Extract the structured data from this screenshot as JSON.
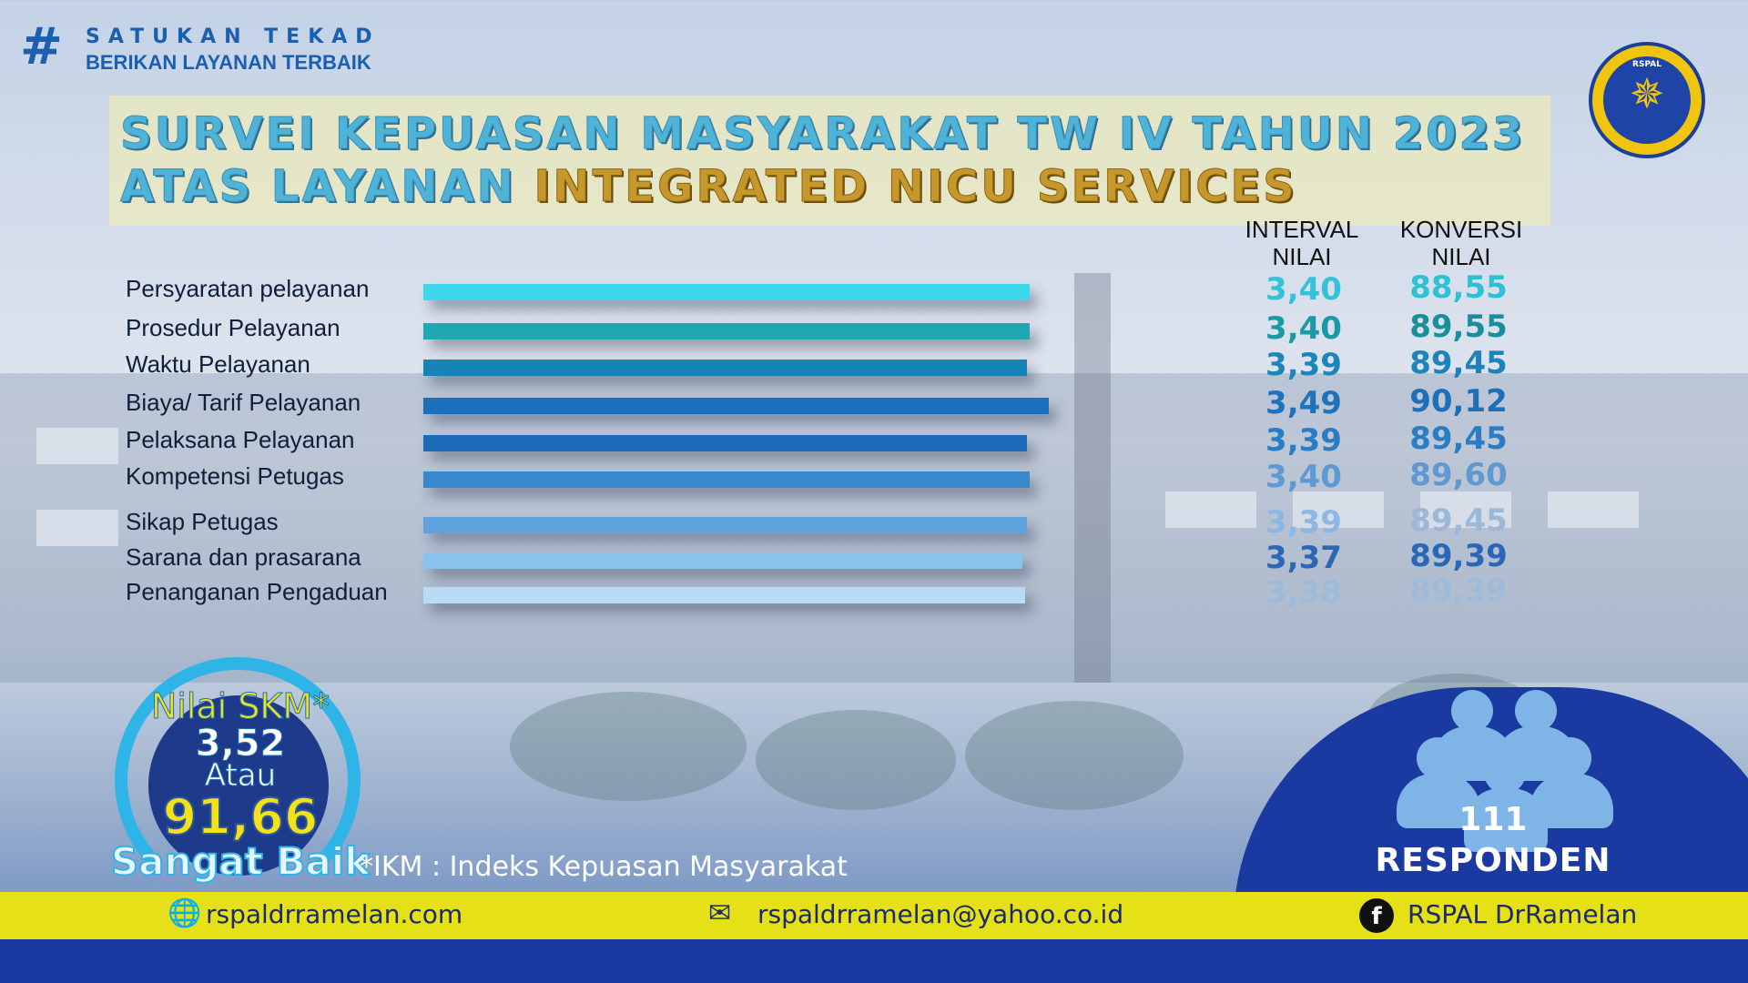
{
  "tagline": {
    "hash": "#",
    "line1": "SATUKAN TEKAD",
    "line2": "BERIKAN LAYANAN TERBAIK"
  },
  "title": {
    "line1": "SURVEI KEPUASAN MASYARAKAT TW IV TAHUN 2023",
    "line2_prefix": "ATAS LAYANAN ",
    "line2_highlight": "INTEGRATED NICU SERVICES"
  },
  "logo": {
    "text": "RSPAL"
  },
  "chart_data": {
    "type": "bar",
    "orientation": "horizontal",
    "column_headers": {
      "interval": [
        "INTERVAL",
        "NILAI"
      ],
      "konversi": [
        "KONVERSI",
        "NILAI"
      ]
    },
    "categories": [
      "Persyaratan pelayanan",
      "Prosedur Pelayanan",
      "Waktu Pelayanan",
      "Biaya/ Tarif Pelayanan",
      "Pelaksana Pelayanan",
      "Kompetensi Petugas",
      "Sikap Petugas",
      "Sarana dan prasarana",
      "Penanganan Pengaduan"
    ],
    "interval_nilai": [
      "3,40",
      "3,40",
      "3,39",
      "3,49",
      "3,39",
      "3,40",
      "3,39",
      "3,37",
      "3,38"
    ],
    "konversi_nilai": [
      "88,55",
      "89,55",
      "89,45",
      "90,12",
      "89,45",
      "89,60",
      "89,45",
      "89,39",
      "89,39"
    ],
    "values": [
      3.4,
      3.4,
      3.39,
      3.49,
      3.39,
      3.4,
      3.39,
      3.37,
      3.38
    ],
    "bar_colors": [
      "#3dd6ea",
      "#1fa8b2",
      "#1784b6",
      "#1a70bc",
      "#1d6ab8",
      "#3a88cc",
      "#5ea3dd",
      "#8ac2ee",
      "#b9dbf6"
    ],
    "value_colors": [
      "#33c3d8",
      "#1a9aa6",
      "#1c86b8",
      "#1f73bd",
      "#2a7cc4",
      "#5c9ad6",
      "#8bb7e2",
      "#2a68b6",
      "#9fbbdb"
    ],
    "konversi_colors": [
      "#2fc0d6",
      "#178f9c",
      "#1e83bb",
      "#1e6fb8",
      "#2a7cc4",
      "#6098d2",
      "#9cb8d8",
      "#2968b6",
      "#9fbbdb"
    ]
  },
  "skm": {
    "title": "Nilai SKM*",
    "score": "3,52",
    "or": "Atau",
    "index": "91,66",
    "category": "Sangat Baik"
  },
  "footnote": "*IKM : Indeks Kepuasan Masyarakat",
  "respondents": {
    "count": "111",
    "label": "RESPONDEN"
  },
  "footer": {
    "website": "rspaldrramelan.com",
    "email": "rspaldrramelan@yahoo.co.id",
    "facebook": "RSPAL DrRamelan",
    "fb_glyph": "f"
  }
}
